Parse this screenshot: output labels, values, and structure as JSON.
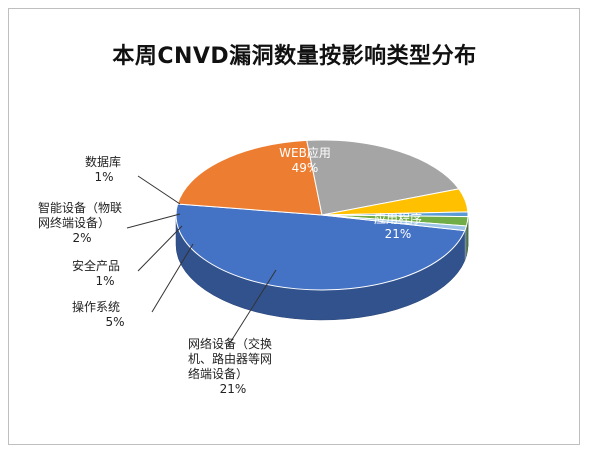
{
  "chart_data": {
    "type": "pie",
    "title": "本周CNVD漏洞数量按影响类型分布",
    "slices": [
      {
        "name": "WEB应用",
        "value": 49,
        "label": "49%",
        "color": "#4472C4"
      },
      {
        "name": "应用程序",
        "value": 21,
        "label": "21%",
        "color": "#ED7D31"
      },
      {
        "name": "网络设备（交换机、路由器等网络端设备）",
        "value": 21,
        "label": "21%",
        "color": "#A5A5A5"
      },
      {
        "name": "操作系统",
        "value": 5,
        "label": "5%",
        "color": "#FFC000"
      },
      {
        "name": "安全产品",
        "value": 1,
        "label": "1%",
        "color": "#5B9BD5"
      },
      {
        "name": "智能设备（物联网终端设备）",
        "value": 2,
        "label": "2%",
        "color": "#70AD47"
      },
      {
        "name": "数据库",
        "value": 1,
        "label": "1%",
        "color": "#9DC3E6"
      }
    ],
    "start_angle_deg": 12,
    "direction": "clockwise",
    "style": "3d",
    "legend": "none"
  }
}
